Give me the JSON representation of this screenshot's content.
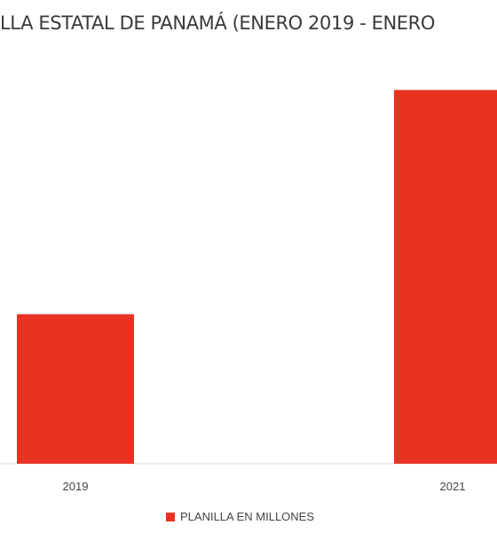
{
  "chart_data": {
    "type": "bar",
    "title": "LLA ESTATAL DE PANAMÁ (ENERO 2019 -  ENERO",
    "categories": [
      "2019",
      "2021"
    ],
    "series": [
      {
        "name": "PLANILLA EN MILLONES",
        "values": [
          40,
          100
        ],
        "color": "#e83323"
      }
    ],
    "ylim": [
      0,
      106
    ],
    "grid": false,
    "legend": "bottom"
  }
}
